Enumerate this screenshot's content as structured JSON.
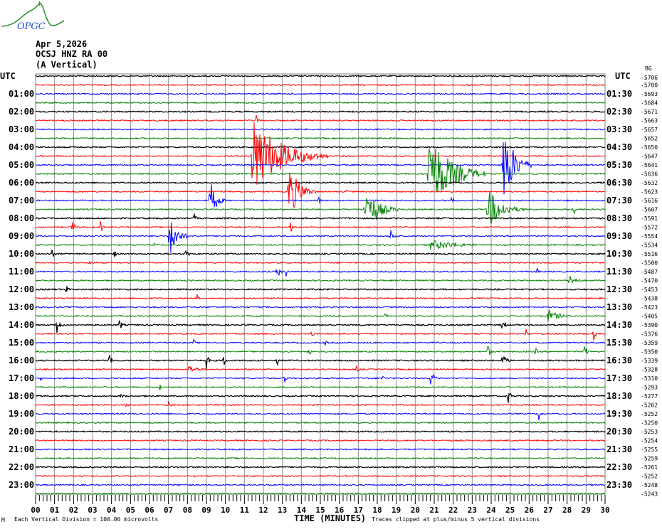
{
  "logo": {
    "text": "OPGC",
    "colors": {
      "curve": "#2e8b2e",
      "text": "#2050c8"
    }
  },
  "header": {
    "date": "Apr 5,2026",
    "station": "OCSJ HNZ RA 00",
    "component": "(A Vertical)"
  },
  "chart_data": {
    "type": "line",
    "subtype": "helicorder",
    "xlabel": "TIME (MINUTES)",
    "x_ticks": [
      "00",
      "01",
      "02",
      "03",
      "04",
      "05",
      "06",
      "07",
      "08",
      "09",
      "10",
      "11",
      "12",
      "13",
      "14",
      "15",
      "16",
      "17",
      "18",
      "19",
      "20",
      "21",
      "22",
      "23",
      "24",
      "25",
      "26",
      "27",
      "28",
      "29",
      "30"
    ],
    "xlim": [
      0,
      30
    ],
    "grid": true,
    "trace_colors": [
      "#000000",
      "#ff0000",
      "#0000ff",
      "#008000"
    ],
    "left_axis_title": "UTC",
    "right_axis_title": "UTC",
    "left_labels": [
      "01:00",
      "02:00",
      "03:00",
      "04:00",
      "05:00",
      "06:00",
      "07:00",
      "08:00",
      "09:00",
      "10:00",
      "11:00",
      "12:00",
      "13:00",
      "14:00",
      "15:00",
      "16:00",
      "17:00",
      "18:00",
      "19:00",
      "20:00",
      "21:00",
      "22:00",
      "23:00"
    ],
    "right_labels": [
      "01:30",
      "02:30",
      "03:30",
      "04:30",
      "05:30",
      "06:30",
      "07:30",
      "08:30",
      "09:30",
      "10:30",
      "11:30",
      "12:30",
      "13:30",
      "14:30",
      "15:30",
      "16:30",
      "17:30",
      "18:30",
      "19:30",
      "20:30",
      "21:30",
      "22:30",
      "23:30"
    ],
    "trace_offsets": [
      "-5706",
      "-5700",
      "-5693",
      "-5684",
      "-5671",
      "-5663",
      "-5657",
      "-5652",
      "-5650",
      "-5647",
      "-5641",
      "-5636",
      "-5632",
      "-5623",
      "-5616",
      "-5607",
      "-5591",
      "-5572",
      "-5554",
      "-5534",
      "-5516",
      "-5500",
      "-5487",
      "-5470",
      "-5453",
      "-5438",
      "-5423",
      "-5405",
      "-5390",
      "-5376",
      "-5359",
      "-5350",
      "-5339",
      "-5328",
      "-5310",
      "-5293",
      "-5277",
      "-5262",
      "-5252",
      "-5250",
      "-5253",
      "-5254",
      "-5255",
      "-5259",
      "-5261",
      "-5252",
      "-5248",
      "-5243"
    ],
    "offset_overlay": "BG",
    "events": [
      {
        "trace": 5,
        "minute": 11.6,
        "amp": 0.8,
        "dur": 0.3
      },
      {
        "trace": 9,
        "minute": 11.4,
        "amp": 4.5,
        "dur": 4
      },
      {
        "trace": 13,
        "minute": 13.3,
        "amp": 3.2,
        "dur": 1.5
      },
      {
        "trace": 13,
        "minute": 14.2,
        "amp": 0.6,
        "dur": 0.5
      },
      {
        "trace": 13,
        "minute": 16.3,
        "amp": 0.6,
        "dur": 0.3
      },
      {
        "trace": 11,
        "minute": 20.7,
        "amp": 4.8,
        "dur": 3
      },
      {
        "trace": 10,
        "minute": 24.6,
        "amp": 5,
        "dur": 1.5
      },
      {
        "trace": 14,
        "minute": 9.2,
        "amp": 2.4,
        "dur": 0.8
      },
      {
        "trace": 14,
        "minute": 14.9,
        "amp": 0.6,
        "dur": 0.3
      },
      {
        "trace": 14,
        "minute": 21.9,
        "amp": 0.8,
        "dur": 0.3
      },
      {
        "trace": 15,
        "minute": 17.3,
        "amp": 2.4,
        "dur": 2
      },
      {
        "trace": 15,
        "minute": 23.8,
        "amp": 2.4,
        "dur": 2
      },
      {
        "trace": 15,
        "minute": 28.3,
        "amp": 1.0,
        "dur": 0.3
      },
      {
        "trace": 18,
        "minute": 7.05,
        "amp": 2.8,
        "dur": 1
      },
      {
        "trace": 18,
        "minute": 18.7,
        "amp": 0.8,
        "dur": 0.5
      },
      {
        "trace": 16,
        "minute": 8.3,
        "amp": 0.8,
        "dur": 0.3
      },
      {
        "trace": 17,
        "minute": 1.9,
        "amp": 1.0,
        "dur": 0.4
      },
      {
        "trace": 17,
        "minute": 3.4,
        "amp": 0.8,
        "dur": 0.3
      },
      {
        "trace": 17,
        "minute": 13.4,
        "amp": 0.9,
        "dur": 0.3
      },
      {
        "trace": 19,
        "minute": 6.2,
        "amp": 0.7,
        "dur": 0.3
      },
      {
        "trace": 19,
        "minute": 20.8,
        "amp": 0.6,
        "dur": 4
      },
      {
        "trace": 20,
        "minute": 0.8,
        "amp": 1.2,
        "dur": 0.3
      },
      {
        "trace": 20,
        "minute": 4.1,
        "amp": 0.7,
        "dur": 0.3
      },
      {
        "trace": 20,
        "minute": 7.9,
        "amp": 0.8,
        "dur": 0.4
      },
      {
        "trace": 21,
        "minute": 2.8,
        "amp": 0.6,
        "dur": 0.3
      },
      {
        "trace": 22,
        "minute": 12.7,
        "amp": 1.0,
        "dur": 0.4
      },
      {
        "trace": 22,
        "minute": 13.2,
        "amp": 0.6,
        "dur": 0.3
      },
      {
        "trace": 22,
        "minute": 26.4,
        "amp": 0.5,
        "dur": 0.3
      },
      {
        "trace": 23,
        "minute": 28.1,
        "amp": 1.0,
        "dur": 0.8
      },
      {
        "trace": 24,
        "minute": 1.6,
        "amp": 0.6,
        "dur": 0.3
      },
      {
        "trace": 25,
        "minute": 8.5,
        "amp": 0.5,
        "dur": 0.3
      },
      {
        "trace": 27,
        "minute": 18.4,
        "amp": 0.5,
        "dur": 0.3
      },
      {
        "trace": 27,
        "minute": 27.0,
        "amp": 0.8,
        "dur": 1.5
      },
      {
        "trace": 28,
        "minute": 1.1,
        "amp": 1.2,
        "dur": 0.4
      },
      {
        "trace": 28,
        "minute": 4.4,
        "amp": 0.8,
        "dur": 0.4
      },
      {
        "trace": 28,
        "minute": 24.6,
        "amp": 1.2,
        "dur": 0.3
      },
      {
        "trace": 29,
        "minute": 14.5,
        "amp": 0.9,
        "dur": 0.3
      },
      {
        "trace": 29,
        "minute": 25.8,
        "amp": 0.8,
        "dur": 0.3
      },
      {
        "trace": 29,
        "minute": 29.4,
        "amp": 0.8,
        "dur": 0.3
      },
      {
        "trace": 30,
        "minute": 8.3,
        "amp": 0.5,
        "dur": 0.3
      },
      {
        "trace": 30,
        "minute": 15.2,
        "amp": 0.6,
        "dur": 0.3
      },
      {
        "trace": 31,
        "minute": 14.4,
        "amp": 0.6,
        "dur": 0.3
      },
      {
        "trace": 31,
        "minute": 23.8,
        "amp": 0.9,
        "dur": 0.4
      },
      {
        "trace": 31,
        "minute": 26.3,
        "amp": 0.7,
        "dur": 0.3
      },
      {
        "trace": 31,
        "minute": 28.9,
        "amp": 0.9,
        "dur": 0.4
      },
      {
        "trace": 32,
        "minute": 3.9,
        "amp": 1.2,
        "dur": 0.3
      },
      {
        "trace": 32,
        "minute": 9.0,
        "amp": 1.0,
        "dur": 0.3
      },
      {
        "trace": 32,
        "minute": 9.9,
        "amp": 0.8,
        "dur": 0.3
      },
      {
        "trace": 32,
        "minute": 12.7,
        "amp": 0.8,
        "dur": 0.3
      },
      {
        "trace": 32,
        "minute": 24.6,
        "amp": 1.5,
        "dur": 0.4
      },
      {
        "trace": 33,
        "minute": 8.0,
        "amp": 0.5,
        "dur": 1.5
      },
      {
        "trace": 33,
        "minute": 16.9,
        "amp": 0.6,
        "dur": 0.3
      },
      {
        "trace": 34,
        "minute": 0.2,
        "amp": 0.6,
        "dur": 0.3
      },
      {
        "trace": 34,
        "minute": 13.1,
        "amp": 0.7,
        "dur": 0.3
      },
      {
        "trace": 34,
        "minute": 18.2,
        "amp": 0.6,
        "dur": 0.4
      },
      {
        "trace": 34,
        "minute": 20.8,
        "amp": 0.8,
        "dur": 0.6
      },
      {
        "trace": 35,
        "minute": 6.5,
        "amp": 0.6,
        "dur": 0.3
      },
      {
        "trace": 36,
        "minute": 4.5,
        "amp": 0.5,
        "dur": 0.3
      },
      {
        "trace": 36,
        "minute": 24.9,
        "amp": 0.8,
        "dur": 0.4
      },
      {
        "trace": 37,
        "minute": 4.7,
        "amp": 0.6,
        "dur": 0.3
      },
      {
        "trace": 37,
        "minute": 7.0,
        "amp": 0.6,
        "dur": 0.3
      },
      {
        "trace": 38,
        "minute": 26.5,
        "amp": 1.0,
        "dur": 0.3
      }
    ]
  },
  "footer": {
    "scale": "Each Vertical Division =  100.00 microvolts",
    "xlabel": "TIME (MINUTES)",
    "clip_note": "Traces clipped at plus/minus 5 vertical divisions",
    "corner_mark": "M"
  }
}
